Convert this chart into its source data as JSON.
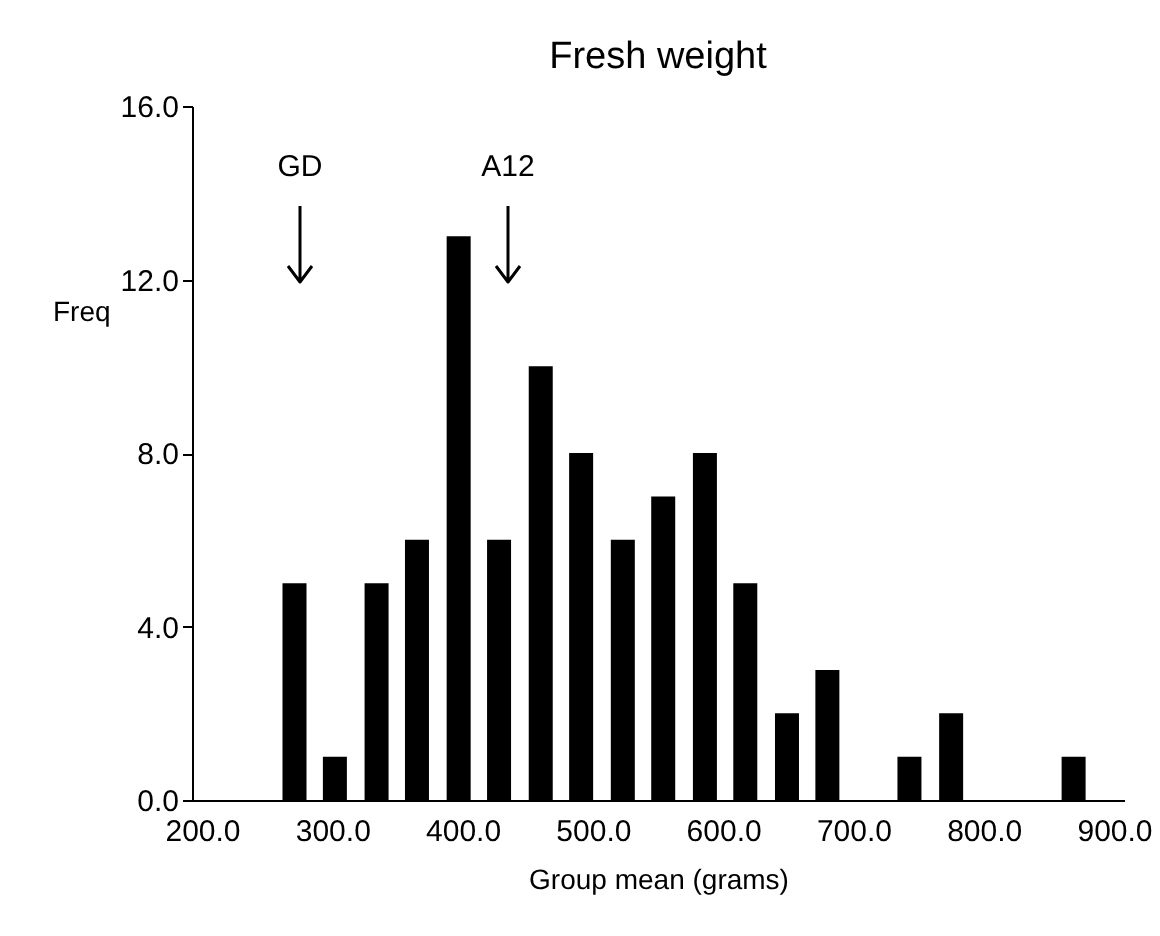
{
  "chart_data": {
    "type": "bar",
    "title": "Fresh weight",
    "xlabel": "Group mean (grams)",
    "ylabel": "Freq",
    "x": [
      271,
      302,
      334,
      365,
      397,
      428,
      460,
      491,
      523,
      554,
      586,
      617,
      649,
      680,
      743,
      775,
      869
    ],
    "values": [
      5,
      1,
      5,
      6,
      13,
      6,
      10,
      8,
      6,
      7,
      8,
      5,
      2,
      3,
      1,
      2,
      1
    ],
    "color": "#000000",
    "xlim": [
      200,
      900
    ],
    "xticks": [
      {
        "value": 200,
        "label": "200.0"
      },
      {
        "value": 300,
        "label": "300.0"
      },
      {
        "value": 400,
        "label": "400.0"
      },
      {
        "value": 500,
        "label": "500.0"
      },
      {
        "value": 600,
        "label": "600.0"
      },
      {
        "value": 700,
        "label": "700.0"
      },
      {
        "value": 800,
        "label": "800.0"
      },
      {
        "value": 900,
        "label": "900.0"
      }
    ],
    "ylim": [
      0,
      16
    ],
    "yticks": [
      {
        "value": 0,
        "label": "0.0"
      },
      {
        "value": 4,
        "label": "4.0"
      },
      {
        "value": 8,
        "label": "8.0"
      },
      {
        "value": 12,
        "label": "12.0"
      },
      {
        "value": 16,
        "label": "16.0"
      }
    ],
    "annotations": [
      "GD",
      "A12"
    ],
    "grid": false
  }
}
